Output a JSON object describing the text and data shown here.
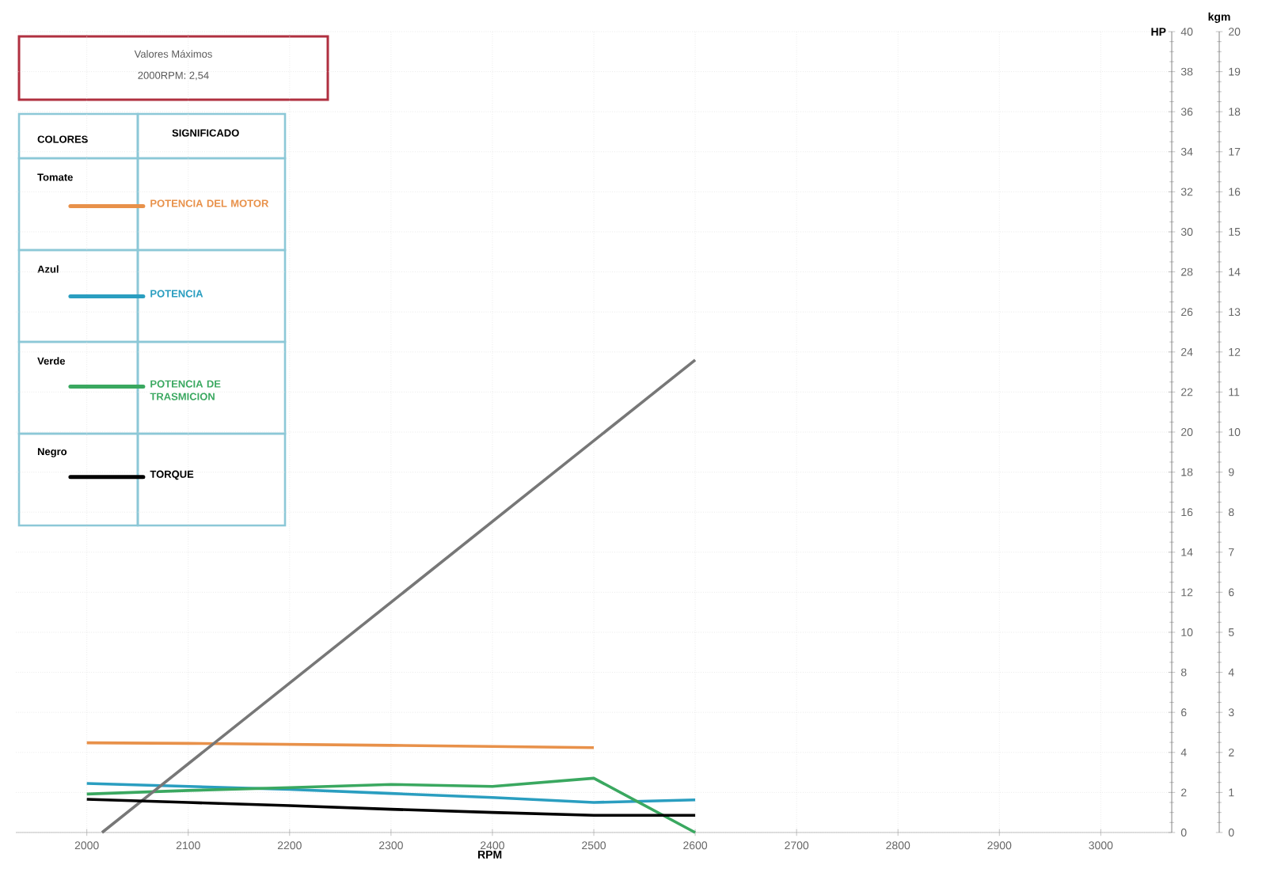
{
  "chart_data": {
    "type": "line",
    "title": "Valores Máximos",
    "subtitle": "2000RPM: 2,54",
    "xlabel": "RPM",
    "ylabel": "HP",
    "y2label": "kgm",
    "x": [
      2000,
      2100,
      2200,
      2300,
      2400,
      2500,
      2600
    ],
    "series": [
      {
        "name": "POTENCIA DEL MOTOR",
        "color": "#e8914a",
        "values": [
          4.48,
          4.45,
          4.4,
          4.35,
          4.3,
          4.24,
          null
        ]
      },
      {
        "name": "POTENCIA",
        "color": "#2a9ec0",
        "values": [
          2.45,
          2.3,
          2.15,
          1.95,
          1.75,
          1.5,
          1.63
        ]
      },
      {
        "name": "POTENCIA DE TRASMICION",
        "color": "#3aa860",
        "values": [
          1.92,
          2.1,
          2.24,
          2.4,
          2.3,
          2.71,
          0
        ]
      },
      {
        "name": "TORQUE",
        "color": "#000000",
        "axis": "y2",
        "values": [
          0.83,
          0.75,
          0.67,
          0.58,
          0.5,
          0.43,
          0.43
        ]
      },
      {
        "color": "#777777",
        "x": [
          2015,
          2600
        ],
        "values": [
          0,
          23.6
        ]
      }
    ],
    "annotations": [
      "COLORES",
      "SIGNIFICADO",
      "Tomate",
      "Azul",
      "Verde",
      "Negro"
    ],
    "xlim": [
      1930,
      3070
    ],
    "ylim": [
      0,
      40
    ],
    "y2lim": [
      0,
      20
    ],
    "xticks": [
      2000,
      2100,
      2200,
      2300,
      2400,
      2500,
      2600,
      2700,
      2800,
      2900,
      3000
    ],
    "yticks": [
      0,
      2,
      4,
      6,
      8,
      10,
      12,
      14,
      16,
      18,
      20,
      22,
      24,
      26,
      28,
      30,
      32,
      34,
      36,
      38,
      40
    ],
    "y2ticks": [
      0,
      1,
      2,
      3,
      4,
      5,
      6,
      7,
      8,
      9,
      10,
      11,
      12,
      13,
      14,
      15,
      16,
      17,
      18,
      19,
      20
    ],
    "grid": true,
    "legend": "top left",
    "marker": "none",
    "line_style": "solid"
  }
}
